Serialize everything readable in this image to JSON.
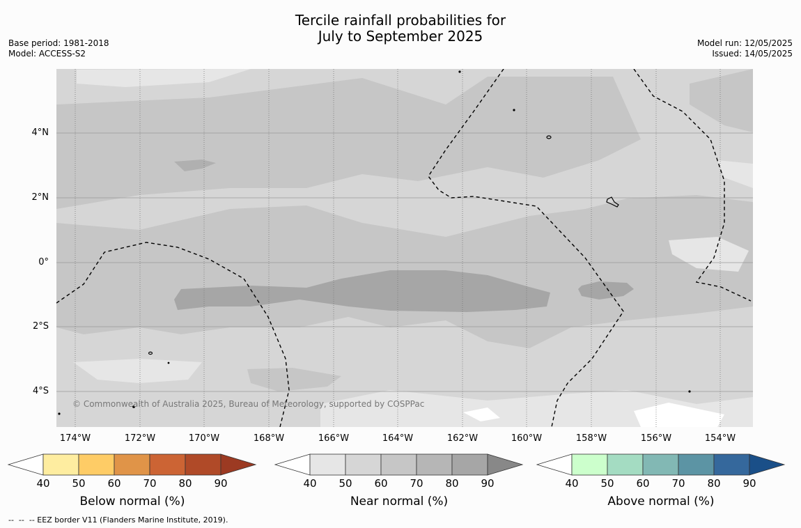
{
  "title": {
    "line1": "Tercile rainfall probabilities for",
    "line2": "July to September 2025"
  },
  "meta": {
    "base_period": "Base period: 1981-2018",
    "model": "Model: ACCESS-S2",
    "model_run": "Model run: 12/05/2025",
    "issued": "Issued: 14/05/2025"
  },
  "map": {
    "lat_labels": [
      "4°N",
      "2°N",
      "0°",
      "2°S",
      "4°S"
    ],
    "lon_labels": [
      "174°W",
      "172°W",
      "170°W",
      "168°W",
      "166°W",
      "164°W",
      "162°W",
      "160°W",
      "158°W",
      "156°W",
      "154°W"
    ],
    "copyright": "© Commonwealth of Australia 2025, Bureau of Meteorology, supported by COSPPac",
    "dominant_category": "Near normal",
    "dominant_probability_range_pct": [
      40,
      70
    ],
    "peak_near_normal_pct_band": "70-80"
  },
  "legends": [
    {
      "title": "Below normal (%)",
      "ticks": [
        "40",
        "50",
        "60",
        "70",
        "80",
        "90"
      ],
      "colors": [
        "#ffffff",
        "#feeda0",
        "#fecc66",
        "#e09448",
        "#cc6434",
        "#b04a28",
        "#9c3a22"
      ]
    },
    {
      "title": "Near normal (%)",
      "ticks": [
        "40",
        "50",
        "60",
        "70",
        "80",
        "90"
      ],
      "colors": [
        "#ffffff",
        "#e6e6e6",
        "#d6d6d6",
        "#c6c6c6",
        "#b6b6b6",
        "#a6a6a6",
        "#888888"
      ]
    },
    {
      "title": "Above normal (%)",
      "ticks": [
        "40",
        "50",
        "60",
        "70",
        "80",
        "90"
      ],
      "colors": [
        "#ffffff",
        "#ccffcc",
        "#a4dcc2",
        "#82b8b4",
        "#5c94a4",
        "#35689c",
        "#1a4f88"
      ]
    }
  ],
  "footnote": "--  --  -- EEZ border V11 (Flanders Marine Institute, 2019)."
}
